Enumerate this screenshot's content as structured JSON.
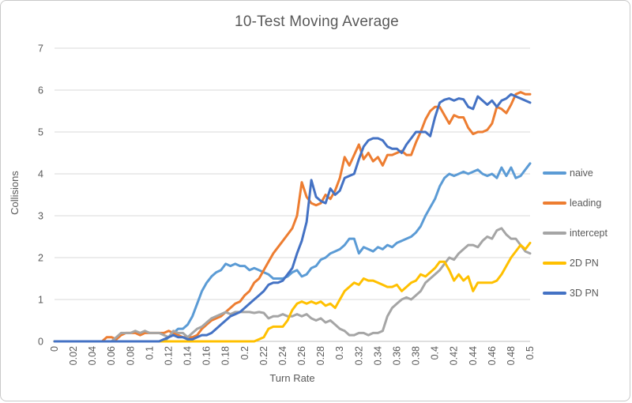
{
  "frame": {
    "background_color": "#FFFFFF",
    "border_color": "#C9C9C9"
  },
  "chart_data": {
    "type": "line",
    "title": "10-Test Moving Average",
    "xlabel": "Turn Rate",
    "ylabel": "Collisions",
    "grid": "horizontal",
    "grid_color": "#D9D9D9",
    "axis_line_color": "#BFBFBF",
    "text_color": "#595959",
    "legend_position": "right",
    "xlim": [
      0,
      0.5
    ],
    "ylim": [
      0,
      7
    ],
    "y_ticks": [
      0,
      1,
      2,
      3,
      4,
      5,
      6,
      7
    ],
    "x_tick_labels": [
      "0",
      "0.02",
      "0.04",
      "0.06",
      "0.08",
      "0.1",
      "0.12",
      "0.14",
      "0.16",
      "0.18",
      "0.2",
      "0.22",
      "0.24",
      "0.26",
      "0.28",
      "0.3",
      "0.32",
      "0.34",
      "0.36",
      "0.38",
      "0.4",
      "0.42",
      "0.44",
      "0.46",
      "0.48",
      "0.5"
    ],
    "x_start": 0,
    "x_step": 0.005,
    "series": [
      {
        "name": "naive",
        "color": "#5B9BD5",
        "values": [
          0,
          0,
          0,
          0,
          0,
          0,
          0,
          0,
          0,
          0,
          0,
          0,
          0,
          0,
          0,
          0,
          0,
          0,
          0,
          0,
          0,
          0,
          0,
          0,
          0.1,
          0.2,
          0.3,
          0.3,
          0.4,
          0.6,
          0.9,
          1.2,
          1.4,
          1.55,
          1.65,
          1.7,
          1.85,
          1.8,
          1.85,
          1.8,
          1.8,
          1.7,
          1.75,
          1.7,
          1.65,
          1.6,
          1.5,
          1.5,
          1.5,
          1.55,
          1.65,
          1.7,
          1.55,
          1.6,
          1.75,
          1.8,
          1.95,
          2.0,
          2.1,
          2.15,
          2.2,
          2.3,
          2.45,
          2.45,
          2.1,
          2.25,
          2.2,
          2.15,
          2.25,
          2.2,
          2.3,
          2.25,
          2.35,
          2.4,
          2.45,
          2.5,
          2.6,
          2.75,
          3.0,
          3.2,
          3.4,
          3.7,
          3.9,
          4.0,
          3.95,
          4.0,
          4.05,
          4.0,
          4.05,
          4.1,
          4.0,
          3.95,
          4.0,
          3.9,
          4.15,
          3.95,
          4.15,
          3.9,
          3.95,
          4.1,
          4.25
        ]
      },
      {
        "name": "leading",
        "color": "#ED7D31",
        "values": [
          0,
          0,
          0,
          0,
          0,
          0,
          0,
          0,
          0,
          0,
          0,
          0.1,
          0.1,
          0.05,
          0.15,
          0.2,
          0.2,
          0.2,
          0.15,
          0.2,
          0.2,
          0.2,
          0.2,
          0.2,
          0.25,
          0.2,
          0.15,
          0.1,
          0.1,
          0.1,
          0.15,
          0.3,
          0.4,
          0.5,
          0.55,
          0.6,
          0.7,
          0.8,
          0.9,
          0.95,
          1.1,
          1.2,
          1.4,
          1.5,
          1.7,
          1.9,
          2.1,
          2.25,
          2.4,
          2.55,
          2.7,
          3.0,
          3.8,
          3.45,
          3.3,
          3.25,
          3.3,
          3.5,
          3.4,
          3.6,
          3.9,
          4.4,
          4.2,
          4.45,
          4.7,
          4.35,
          4.5,
          4.3,
          4.4,
          4.2,
          4.45,
          4.45,
          4.5,
          4.55,
          4.45,
          4.45,
          4.75,
          5.0,
          5.3,
          5.5,
          5.6,
          5.6,
          5.4,
          5.2,
          5.4,
          5.35,
          5.35,
          5.1,
          4.95,
          5.0,
          5.0,
          5.05,
          5.2,
          5.6,
          5.55,
          5.45,
          5.65,
          5.9,
          5.95,
          5.9,
          5.9
        ]
      },
      {
        "name": "intercept",
        "color": "#A5A5A5",
        "values": [
          0,
          0,
          0,
          0,
          0,
          0,
          0,
          0,
          0,
          0,
          0,
          0,
          0,
          0.1,
          0.2,
          0.2,
          0.2,
          0.25,
          0.2,
          0.25,
          0.2,
          0.2,
          0.2,
          0.15,
          0.1,
          0.25,
          0.2,
          0.2,
          0.1,
          0.2,
          0.3,
          0.35,
          0.45,
          0.55,
          0.6,
          0.65,
          0.7,
          0.65,
          0.7,
          0.7,
          0.7,
          0.7,
          0.68,
          0.7,
          0.68,
          0.55,
          0.6,
          0.6,
          0.65,
          0.6,
          0.6,
          0.65,
          0.6,
          0.65,
          0.55,
          0.5,
          0.55,
          0.45,
          0.5,
          0.4,
          0.3,
          0.25,
          0.15,
          0.15,
          0.2,
          0.2,
          0.15,
          0.2,
          0.2,
          0.25,
          0.6,
          0.8,
          0.9,
          1.0,
          1.05,
          1.0,
          1.1,
          1.2,
          1.4,
          1.5,
          1.6,
          1.7,
          1.85,
          2.0,
          1.95,
          2.1,
          2.2,
          2.3,
          2.3,
          2.25,
          2.4,
          2.5,
          2.45,
          2.65,
          2.7,
          2.55,
          2.45,
          2.45,
          2.3,
          2.15,
          2.1
        ]
      },
      {
        "name": "2D PN",
        "color": "#FFC000",
        "values": [
          0,
          0,
          0,
          0,
          0,
          0,
          0,
          0,
          0,
          0,
          0,
          0,
          0,
          0,
          0,
          0,
          0,
          0,
          0,
          0,
          0,
          0,
          0,
          0,
          0,
          0,
          0,
          0,
          0,
          0,
          0,
          0,
          0,
          0,
          0,
          0,
          0,
          0,
          0,
          0,
          0,
          0,
          0,
          0.05,
          0.1,
          0.3,
          0.35,
          0.35,
          0.35,
          0.5,
          0.75,
          0.9,
          0.95,
          0.9,
          0.95,
          0.9,
          0.95,
          0.85,
          0.9,
          0.8,
          1.0,
          1.2,
          1.3,
          1.4,
          1.35,
          1.5,
          1.45,
          1.45,
          1.4,
          1.35,
          1.3,
          1.3,
          1.35,
          1.2,
          1.3,
          1.4,
          1.45,
          1.6,
          1.55,
          1.65,
          1.75,
          1.9,
          1.9,
          1.7,
          1.45,
          1.6,
          1.45,
          1.55,
          1.2,
          1.4,
          1.4,
          1.4,
          1.4,
          1.45,
          1.6,
          1.8,
          2.0,
          2.15,
          2.3,
          2.2,
          2.35
        ]
      },
      {
        "name": "3D PN",
        "color": "#4472C4",
        "values": [
          0,
          0,
          0,
          0,
          0,
          0,
          0,
          0,
          0,
          0,
          0,
          0,
          0,
          0,
          0,
          0,
          0,
          0,
          0,
          0,
          0,
          0,
          0,
          0.05,
          0.1,
          0.15,
          0.1,
          0.1,
          0.05,
          0.05,
          0.1,
          0.15,
          0.15,
          0.2,
          0.3,
          0.4,
          0.5,
          0.6,
          0.65,
          0.7,
          0.8,
          0.9,
          1.0,
          1.1,
          1.2,
          1.35,
          1.4,
          1.4,
          1.45,
          1.6,
          1.75,
          2.1,
          2.4,
          2.85,
          3.85,
          3.45,
          3.35,
          3.3,
          3.65,
          3.5,
          3.6,
          3.9,
          3.95,
          4.0,
          4.35,
          4.65,
          4.8,
          4.85,
          4.85,
          4.8,
          4.65,
          4.6,
          4.6,
          4.5,
          4.7,
          4.85,
          5.0,
          5.0,
          5.0,
          4.9,
          5.35,
          5.7,
          5.77,
          5.8,
          5.75,
          5.8,
          5.78,
          5.6,
          5.55,
          5.85,
          5.75,
          5.65,
          5.75,
          5.6,
          5.75,
          5.8,
          5.9,
          5.85,
          5.8,
          5.75,
          5.7
        ]
      }
    ]
  }
}
